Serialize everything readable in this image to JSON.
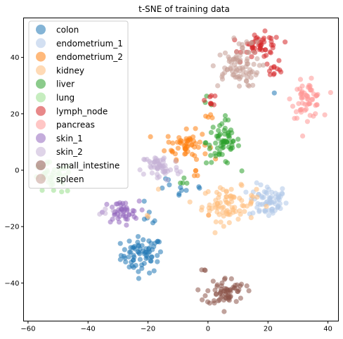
{
  "chart_data": {
    "type": "scatter",
    "title": "t-SNE of training data",
    "xlabel": "",
    "ylabel": "",
    "xlim": [
      -61.5,
      43.5
    ],
    "ylim": [
      -53.5,
      54
    ],
    "xticks": [
      -60,
      -40,
      -20,
      0,
      20,
      40
    ],
    "yticks": [
      -40,
      -20,
      0,
      20,
      40
    ],
    "grid": false,
    "legend_position": "top-left",
    "series": [
      {
        "name": "colon",
        "color": "#1f77b4",
        "clusters": [
          {
            "cx": -22,
            "cy": -30,
            "sx": 3.5,
            "sy": 3.2,
            "n": 70
          },
          {
            "cx": -20,
            "cy": -16,
            "sx": 2,
            "sy": 2,
            "n": 6
          },
          {
            "cx": -13,
            "cy": -6,
            "sx": 2,
            "sy": 2,
            "n": 5
          },
          {
            "cx": -9,
            "cy": -7,
            "sx": 1.5,
            "sy": 1.5,
            "n": 4
          },
          {
            "cx": -4,
            "cy": -6,
            "sx": 1,
            "sy": 1,
            "n": 2
          },
          {
            "cx": 22,
            "cy": 27,
            "sx": 0.5,
            "sy": 0.5,
            "n": 1
          }
        ]
      },
      {
        "name": "endometrium_1",
        "color": "#aec7e8",
        "clusters": [
          {
            "cx": 20,
            "cy": -11,
            "sx": 3.2,
            "sy": 3,
            "n": 65
          }
        ]
      },
      {
        "name": "endometrium_2",
        "color": "#ff7f0e",
        "clusters": [
          {
            "cx": -7,
            "cy": 9,
            "sx": 3.5,
            "sy": 2.5,
            "n": 55
          },
          {
            "cx": 0,
            "cy": 19,
            "sx": 0.8,
            "sy": 1,
            "n": 4
          },
          {
            "cx": -4,
            "cy": -1,
            "sx": 1.5,
            "sy": 1,
            "n": 4
          },
          {
            "cx": 0,
            "cy": -16,
            "sx": 0.5,
            "sy": 0.5,
            "n": 1
          }
        ]
      },
      {
        "name": "kidney",
        "color": "#ffbb78",
        "clusters": [
          {
            "cx": 7,
            "cy": -12,
            "sx": 4.5,
            "sy": 3,
            "n": 80
          },
          {
            "cx": -20,
            "cy": -17,
            "sx": 1,
            "sy": 1,
            "n": 2
          },
          {
            "cx": -17,
            "cy": -6,
            "sx": 0.5,
            "sy": 0.5,
            "n": 1
          }
        ]
      },
      {
        "name": "liver",
        "color": "#2ca02c",
        "clusters": [
          {
            "cx": 5,
            "cy": 10,
            "sx": 2.8,
            "sy": 4,
            "n": 65
          },
          {
            "cx": 0,
            "cy": 23,
            "sx": 1,
            "sy": 1,
            "n": 3
          },
          {
            "cx": -8,
            "cy": -4,
            "sx": 1,
            "sy": 1,
            "n": 4
          }
        ]
      },
      {
        "name": "lung",
        "color": "#98df8a",
        "clusters": [
          {
            "cx": -52,
            "cy": -3,
            "sx": 3.5,
            "sy": 2.8,
            "n": 45
          }
        ]
      },
      {
        "name": "lymph_node",
        "color": "#d62728",
        "clusters": [
          {
            "cx": 18,
            "cy": 44,
            "sx": 3.2,
            "sy": 2.2,
            "n": 50
          },
          {
            "cx": 22,
            "cy": 36,
            "sx": 1.5,
            "sy": 1.5,
            "n": 12
          },
          {
            "cx": 1,
            "cy": 25,
            "sx": 1,
            "sy": 1,
            "n": 8
          }
        ]
      },
      {
        "name": "pancreas",
        "color": "#ff9896",
        "clusters": [
          {
            "cx": 33,
            "cy": 25,
            "sx": 2.5,
            "sy": 3.2,
            "n": 60
          }
        ]
      },
      {
        "name": "skin_1",
        "color": "#9467bd",
        "clusters": [
          {
            "cx": -29,
            "cy": -15,
            "sx": 3,
            "sy": 2,
            "n": 45
          }
        ]
      },
      {
        "name": "skin_2",
        "color": "#c5b0d5",
        "clusters": [
          {
            "cx": -16,
            "cy": 1,
            "sx": 3.2,
            "sy": 2.5,
            "n": 55
          },
          {
            "cx": -34,
            "cy": -14,
            "sx": 1.5,
            "sy": 1,
            "n": 4
          }
        ]
      },
      {
        "name": "small_intestine",
        "color": "#8c564b",
        "clusters": [
          {
            "cx": 6,
            "cy": -43,
            "sx": 3.2,
            "sy": 2.5,
            "n": 65
          },
          {
            "cx": 0,
            "cy": -36,
            "sx": 0.8,
            "sy": 0.6,
            "n": 3
          }
        ]
      },
      {
        "name": "spleen",
        "color": "#c49c94",
        "clusters": [
          {
            "cx": 9,
            "cy": 36,
            "sx": 4,
            "sy": 3.2,
            "n": 70
          },
          {
            "cx": 12,
            "cy": 44,
            "sx": 2,
            "sy": 1.5,
            "n": 12
          }
        ]
      }
    ]
  }
}
